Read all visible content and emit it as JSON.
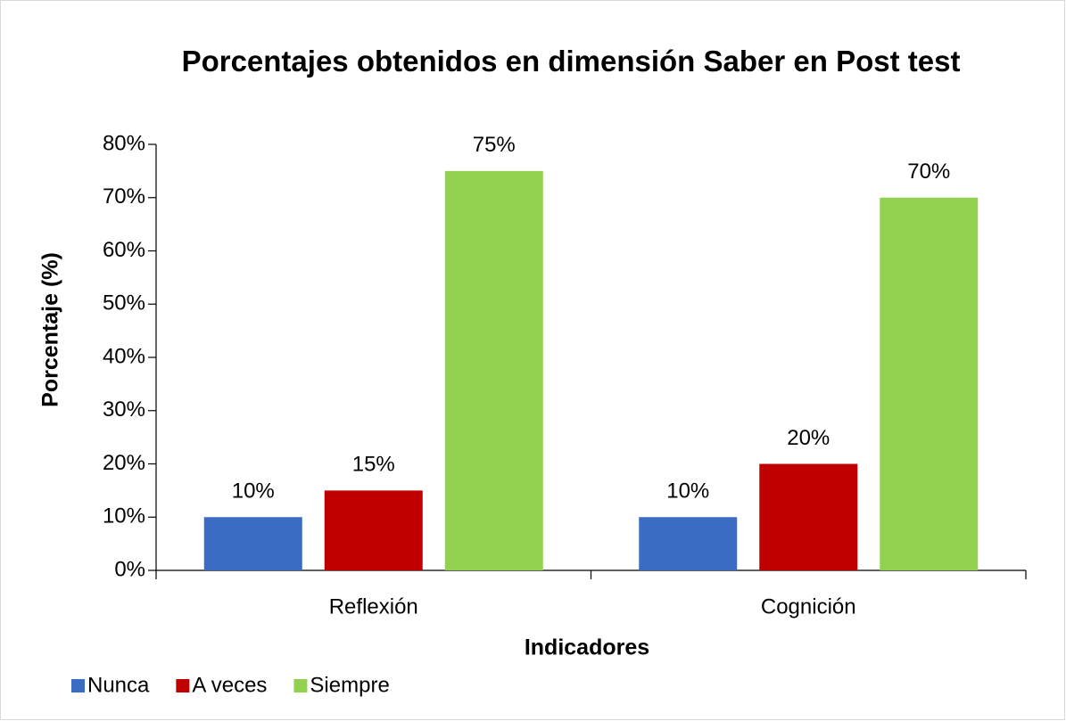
{
  "chart_data": {
    "type": "bar",
    "title": "Porcentajes obtenidos en dimensión Saber en Post test",
    "x_label": "Indicadores",
    "y_label": "Porcentaje (%)",
    "categories": [
      "Reflexión",
      "Cognición"
    ],
    "series": [
      {
        "name": "Nunca",
        "color": "#3a6cc4",
        "values": [
          10,
          10
        ],
        "value_labels": [
          "10%",
          "10%"
        ]
      },
      {
        "name": "A veces",
        "color": "#c00000",
        "values": [
          15,
          20
        ],
        "value_labels": [
          "15%",
          "20%"
        ]
      },
      {
        "name": "Siempre",
        "color": "#92d050",
        "values": [
          75,
          70
        ],
        "value_labels": [
          "75%",
          "70%"
        ]
      }
    ],
    "ylim": [
      0,
      80
    ],
    "yticks": [
      {
        "value": 0,
        "label": "0%"
      },
      {
        "value": 10,
        "label": "10%"
      },
      {
        "value": 20,
        "label": "20%"
      },
      {
        "value": 30,
        "label": "30%"
      },
      {
        "value": 40,
        "label": "40%"
      },
      {
        "value": 50,
        "label": "50%"
      },
      {
        "value": 60,
        "label": "60%"
      },
      {
        "value": 70,
        "label": "70%"
      },
      {
        "value": 80,
        "label": "80%"
      }
    ],
    "legend": "bottom-left"
  }
}
